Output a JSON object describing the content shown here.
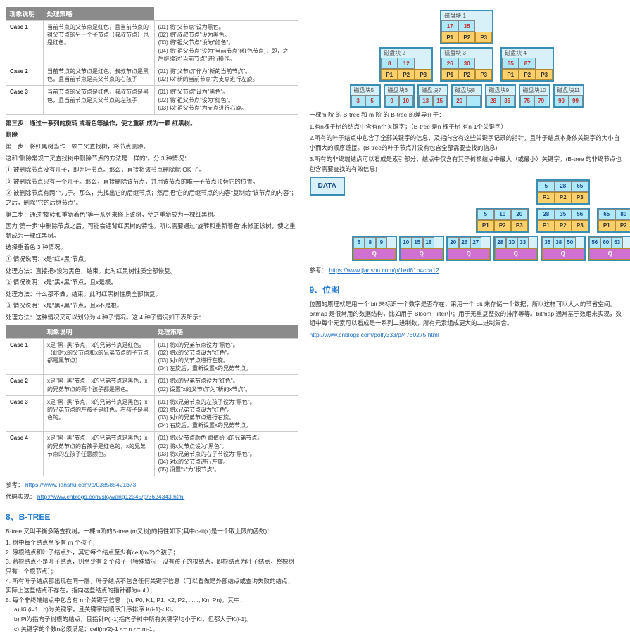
{
  "tables": {
    "insert": {
      "headers": [
        "现象说明",
        "处理策略"
      ],
      "rows": [
        {
          "case": "Case 1",
          "cond": "当前节点的父节点是红色，且当前节点的祖父节点的另一个子节点（叔叔节点）也是红色。",
          "act": "(01) 将\"父节点\"设为黑色。\n(02) 将\"叔叔节点\"设为黑色。\n(03) 将\"祖父节点\"设为\"红色\"。\n(04) 将\"祖父节点\"设为\"当前节点\"(红色节点)；即，之后继续对\"当前节点\"进行操作。"
        },
        {
          "case": "Case 2",
          "cond": "当前节点的父节点是红色，叔叔节点是黑色，且当前节点是其父节点的右孩子",
          "act": "(01) 将\"父节点\"作为\"新的当前节点\"。\n(02) 以\"新的当前节点\"为支点进行左旋。"
        },
        {
          "case": "Case 3",
          "cond": "当前节点的父节点是红色，叔叔节点是黑色，且当前节点是其父节点的左孩子",
          "act": "(01) 将\"父节点\"设为\"黑色\"。\n(02) 将\"祖父节点\"设为\"红色\"。\n(03) 以\"祖父节点\"为支点进行右旋。"
        }
      ]
    },
    "delete": {
      "headers": [
        "现象说明",
        "处理策略"
      ],
      "rows": [
        {
          "case": "Case 1",
          "cond": "x是\"黑+黑\"节点，x的兄弟节点是红色。（此时x的父节点和x的兄弟节点的子节点都是黑节点）",
          "act": "(01) 将x的兄弟节点设为\"黑色\"。\n(02) 将x的父节点设为\"红色\"。\n(03) 对x的父节点进行左旋。\n(04) 左旋后，重新设置x的兄弟节点。"
        },
        {
          "case": "Case 2",
          "cond": "x是\"黑+黑\"节点，x的兄弟节点是黑色，x的兄弟节点的两个孩子都是黑色。",
          "act": "(01) 将x的兄弟节点设为\"红色\"。\n(02) 设置\"x的父节点\"为\"新的x节点\"。"
        },
        {
          "case": "Case 3",
          "cond": "x是\"黑+黑\"节点，x的兄弟节点是黑色；x的兄弟节点的左孩子是红色，右孩子是黑色的。",
          "act": "(01) 将x兄弟节点的左孩子设为\"黑色\"。\n(02) 将x兄弟节点设为\"红色\"。\n(03) 对x的兄弟节点进行右旋。\n(04) 右旋后，重新设置x的兄弟节点。"
        },
        {
          "case": "Case 4",
          "cond": "x是\"黑+黑\"节点，x的兄弟节点是黑色；x的兄弟节点的右孩子是红色的，x的兄弟节点的左孩子任意颜色。",
          "act": "(01) 将x父节点颜色 赋值给 x的兄弟节点。\n(02) 将x父节点设为\"黑色\"。\n(03) 将x兄弟节点的右子节设为\"黑色\"。\n(04) 对x的父节点进行左旋。\n(05) 设置\"x\"为\"根节点\"。"
        }
      ]
    }
  },
  "text": {
    "step3": "第三步：通过一系列的旋转 或着色等操作，使之重新 成为一颗 红黑树。",
    "deleteHeading": "删除",
    "d0": "第一步：将红黑树当作一颗二叉查找树，将节点删除。",
    "d1": "这和\"删除常规二叉查找树中删除节点的方法是一样的\"。分 3 种情况：",
    "d1a": "① 被删除节点没有儿子，即为叶节点。那么，直接将该节点删除就 OK 了。",
    "d1b": "② 被删除节点只有一个儿子。那么，直接删除该节点，并用该节点的唯一子节点顶替它的位置。",
    "d1c": "③ 被删除节点有两个儿子。那么，先找出它的后继节点；然后把\"它的后继节点的内容\"复制给\"该节点的内容\"；之后，删除\"它的后继节点\"。",
    "d2": "第二步：通过\"旋转和重新着色\"等一系列来修正该树，使之重新成为一棵红黑树。",
    "d3": "因为\"第一步\"中删除节点之后，可能会违背红黑树的特性。所以需要通过\"旋转和重新着色\"来修正该树，使之重新成为一棵红黑树。",
    "d4": "选择重着色 3 种情况。",
    "d5": "① 情况说明：x是\"红+黑\"节点。",
    "d5a": "处理方法：直接把x设为黑色，结束。此时红黑树性质全部恢复。",
    "d6": "② 情况说明：x是\"黑+黑\"节点，且x是根。",
    "d6a": "处理方法：什么都不做，结束。此时红黑树性质全部恢复。",
    "d7": "③ 情况说明：x是\"黑+黑\"节点，且x不是根。",
    "d7a": "处理方法：这种情况又可以划分为 4 种子情况。这 4 种子情况如下表所示：",
    "ref_label": "参考：",
    "ref1": "https://www.jianshu.com/p/038585421b73",
    "ref2_label": "代码实现：",
    "ref2": "http://www.cnblogs.com/skywang12345/p/3624343.html",
    "btree_title": "8、B-TREE",
    "btree1": "B-tree 又叫平衡多路查找树。一棵m阶的B-tree (m叉树)的特性如下(其中ceil(x)是一个取上限的函数)：",
    "btree_li1": "1. 树中每个结点至多有 m 个孩子；",
    "btree_li2": "2. 除根结点和叶子结点外，其它每个结点至少有ceil(m/2)个孩子；",
    "btree_li3": "3. 若根结点不是叶子结点，则至少有 2 个孩子（特殊情况：没有孩子的根结点，即根结点为叶子结点，整棵树只有一个根节点）；",
    "btree_li4": "4. 所有叶子结点都出现在同一层，叶子结点不包含任何关键字信息（可以看做是外部结点或查询失败的结点，实际上这些结点不存在，指向这些结点的指针都为null）；",
    "btree_li5": "5. 每个非终端结点中包含有 n 个关键字信息：(n, P0, K1, P1, K2, P2, ......, Kn, Pn)。其中：",
    "btree_li5a": "a) Ki (i=1...n)为关键字，且关键字按顺序升序排序 K(i-1)< Ki。",
    "btree_li5b": "b) Pi为指向子树根的结点，且指针P(i-1)指向子树中所有关键字均小于Ki，但都大于K(i-1)。",
    "btree_li5c": "c) 关键字的个数n必须满足：ceil(m/2)-1 <= n <= m-1。"
  },
  "right": {
    "btree_note1": "一棵m 阶 的 B-tree 和 m 阶 的 B-tree 的差异在于：",
    "btree_note2": "1.有n棵子树的结点中含有n个关键字；（B-tree 是n 棵子树 有n-1个关键字）",
    "btree_note3": "2.所有的叶子结点中包含了全部关键字的信息，及指向含有这些关键字记录的指针，且叶子结点本身依关键字的大小自小而大的顺序链接。(B-tree的叶子节点并没有包含全部需要查找的信息)",
    "btree_note4": "3.所有的非终端结点可以看成是索引部分，结点中仅含有其子树根结点中最大（或最小）关键字。(B-tree 的非终节点也包含需要查找的有效信息)",
    "data_label": "DATA",
    "ref3_label": "参考：",
    "ref3": "https://www.jianshu.com/p/1ed61b4cca12",
    "bitmap_title": "9、位图",
    "bitmap1": "位图的原理就是用一个 bit 来标识一个数字是否存在，采用一个 bit 来存储一个数据，所以这样可以大大的节省空间。bitmap 是很常用的数据结构，比如用于 Bloom Filter中；用于无重复整数的排序等等。bitmap 通常基于数组来实现，数组中每个元素可以看成是一系列二进制数，所有元素组成更大的二进制集合。",
    "bitmap_ref": "http://www.cnblogs.com/polly333/p/4760275.html"
  },
  "btree1": {
    "root": {
      "hdr": "磁盘块 1",
      "keys": [
        "17",
        "35"
      ],
      "ptrs": [
        "P1",
        "P2",
        "P3"
      ]
    },
    "l2": [
      {
        "hdr": "磁盘块 2",
        "keys": [
          "8",
          "12"
        ],
        "ptrs": [
          "P1",
          "P2",
          "P3"
        ]
      },
      {
        "hdr": "磁盘块 3",
        "keys": [
          "26",
          "30"
        ],
        "ptrs": [
          "P1",
          "P2",
          "P3"
        ]
      },
      {
        "hdr": "磁盘块 4",
        "keys": [
          "65",
          "87"
        ],
        "ptrs": [
          "P1",
          "P2",
          "P3"
        ]
      }
    ],
    "l3": [
      {
        "hdr": "磁盘块5",
        "keys": [
          "3",
          "5"
        ]
      },
      {
        "hdr": "磁盘块6",
        "keys": [
          "9",
          "10"
        ]
      },
      {
        "hdr": "磁盘块7",
        "keys": [
          "13",
          "15"
        ]
      },
      {
        "hdr": "磁盘块8",
        "keys": [
          "20",
          ""
        ]
      },
      {
        "hdr": "磁盘块9",
        "keys": [
          "28",
          "36"
        ]
      },
      {
        "hdr": "磁盘块10",
        "keys": [
          "75",
          "79"
        ]
      },
      {
        "hdr": "磁盘块11",
        "keys": [
          "90",
          "99"
        ]
      }
    ]
  },
  "btree2": {
    "root": {
      "keys": [
        "5",
        "28",
        "65"
      ],
      "ptrs": [
        "P1",
        "P2",
        "P3"
      ]
    },
    "l2": [
      {
        "keys": [
          "5",
          "10",
          "20"
        ],
        "ptrs": [
          "P1",
          "P2",
          "P3"
        ]
      },
      {
        "keys": [
          "28",
          "35",
          "56"
        ],
        "ptrs": [
          "P1",
          "P2",
          "P3"
        ]
      },
      {
        "keys": [
          "65",
          "80",
          "90"
        ],
        "ptrs": [
          "P1",
          "P2",
          "P3"
        ]
      }
    ],
    "l3": [
      {
        "keys": [
          "5",
          "8",
          "9"
        ],
        "q": "Q"
      },
      {
        "keys": [
          "10",
          "15",
          "18"
        ],
        "q": "Q"
      },
      {
        "keys": [
          "20",
          "26",
          "27"
        ],
        "q": "Q"
      },
      {
        "keys": [
          "28",
          "30",
          "33"
        ],
        "q": "Q"
      },
      {
        "keys": [
          "35",
          "38",
          "50"
        ],
        "q": "Q"
      },
      {
        "keys": [
          "56",
          "60",
          "63"
        ],
        "q": "Q"
      },
      {
        "keys": [
          "65",
          "73",
          "79"
        ],
        "q": "Q"
      },
      {
        "keys": [
          "80",
          "85",
          "88"
        ],
        "q": "Q"
      },
      {
        "keys": [
          "90",
          "96",
          "99"
        ],
        "q": "Q",
        "last": true
      }
    ]
  },
  "colors": {
    "link": "#1a6fc4",
    "heading": "#1f7ad1",
    "key_red": "#c62f2f"
  }
}
